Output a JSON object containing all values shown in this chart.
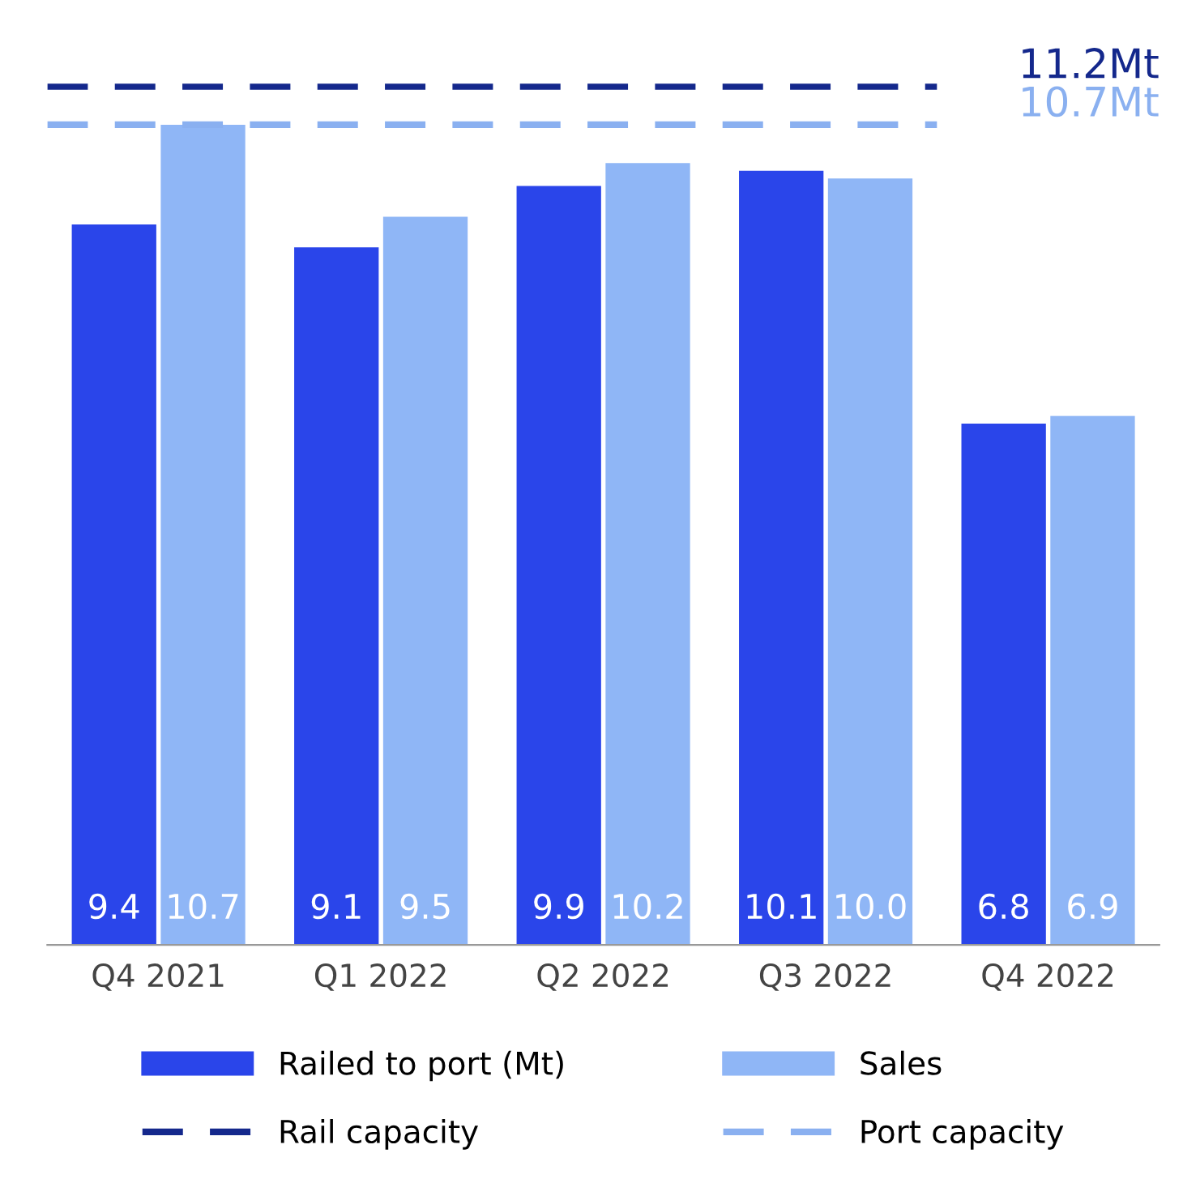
{
  "chart_data": {
    "type": "bar",
    "categories": [
      "Q4 2021",
      "Q1 2022",
      "Q2 2022",
      "Q3 2022",
      "Q4 2022"
    ],
    "series": [
      {
        "name": "Railed to port (Mt)",
        "color": "#2a45ea",
        "values": [
          9.4,
          9.1,
          9.9,
          10.1,
          6.8
        ],
        "value_labels": [
          "9.4",
          "9.1",
          "9.9",
          "10.1",
          "6.8"
        ]
      },
      {
        "name": "Sales",
        "color": "#8fb6f6",
        "values": [
          10.7,
          9.5,
          10.2,
          10.0,
          6.9
        ],
        "value_labels": [
          "10.7",
          "9.5",
          "10.2",
          "10.0",
          "6.9"
        ]
      }
    ],
    "ref_lines": [
      {
        "axis": "y",
        "value": 11.2,
        "label": "Rail capacity",
        "color": "#14288c",
        "line_style": "dashed"
      },
      {
        "axis": "y",
        "value": 10.7,
        "label": "Port capacity",
        "color": "#8ab0f0",
        "line_style": "dashed"
      }
    ],
    "annotations": [
      "11.2Mt",
      "10.7Mt"
    ],
    "legend": "bottom",
    "grid": false
  }
}
